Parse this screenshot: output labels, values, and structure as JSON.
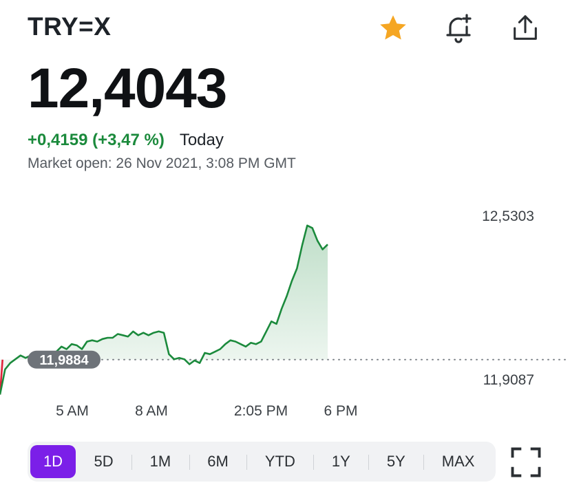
{
  "header": {
    "symbol": "TRY=X",
    "price": "12,4043",
    "change": "+0,4159 (+3,47 %)",
    "period": "Today",
    "market_status": "Market open: 26 Nov 2021, 3:08 PM GMT"
  },
  "icons": {
    "favorite": "star-icon",
    "alert": "bell-plus-icon",
    "share": "share-icon",
    "fullscreen": "fullscreen-icon"
  },
  "colors": {
    "up": "#1b8a3c",
    "down": "#e0213a",
    "star": "#f5a623",
    "accent": "#7b1fe8"
  },
  "chart_data": {
    "type": "line",
    "y_axis_labels": [
      "12,5303",
      "11,9087"
    ],
    "previous_close_label": "11,9884",
    "x_tick_labels": [
      "5 AM",
      "8 AM",
      "2:05 PM",
      "6 PM"
    ],
    "series": [
      {
        "values": [
          11.85,
          11.95,
          11.975,
          11.99,
          12.005,
          11.995,
          12.005,
          12.01,
          12.015,
          12.012,
          12.008,
          12.02,
          12.04,
          12.03,
          12.05,
          12.045,
          12.03,
          12.06,
          12.065,
          12.06,
          12.07,
          12.075,
          12.075,
          12.09,
          12.085,
          12.08,
          12.1,
          12.085,
          12.095,
          12.085,
          12.095,
          12.1,
          12.095,
          12.01,
          11.99,
          11.995,
          11.99,
          11.97,
          11.985,
          11.975,
          12.015,
          12.01,
          12.02,
          12.03,
          12.05,
          12.065,
          12.06,
          12.05,
          12.04,
          12.055,
          12.05,
          12.06,
          12.1,
          12.14,
          12.13,
          12.19,
          12.24,
          12.3,
          12.35,
          12.44,
          12.52,
          12.51,
          12.46,
          12.425,
          12.445
        ],
        "color": "#1b8a3c"
      }
    ],
    "previous_close": 11.9884,
    "ylim": [
      11.9087,
      12.5303
    ],
    "grid": false
  },
  "ranges": [
    {
      "label": "1D",
      "active": true
    },
    {
      "label": "5D",
      "active": false
    },
    {
      "label": "1M",
      "active": false
    },
    {
      "label": "6M",
      "active": false
    },
    {
      "label": "YTD",
      "active": false
    },
    {
      "label": "1Y",
      "active": false
    },
    {
      "label": "5Y",
      "active": false
    },
    {
      "label": "MAX",
      "active": false
    }
  ]
}
